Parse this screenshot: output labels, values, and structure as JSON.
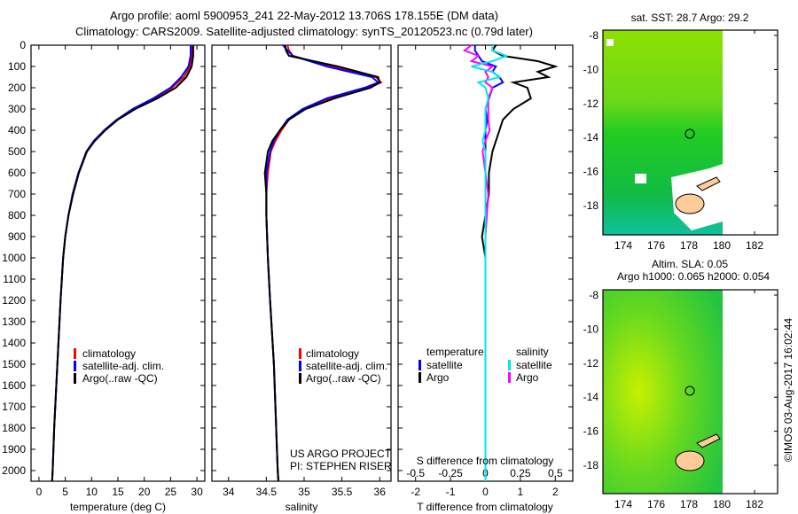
{
  "title_line1": "Argo profile: aoml 5900953_241 22-May-2012 13.706S 178.155E (DM data)",
  "title_line2": "Climatology: CARS2009. Satellite-adjusted climatology: synTS_20120523.nc (0.79d later)",
  "timestamp": "©IMOS 03-Aug-2017 16:02:44",
  "project_line1": "US ARGO PROJECT",
  "project_line2": "PI: STEPHEN RISER",
  "colors": {
    "climatology": "#ff0000",
    "satellite": "#0000ff",
    "argo": "#000000",
    "sal_satellite": "#00e5ee",
    "sal_argo": "#ff00ff",
    "land": "#ffcc99"
  },
  "chart_data": [
    {
      "type": "line",
      "name": "temperature",
      "xlabel": "temperature (deg C)",
      "ylabel": "depth",
      "xlim": [
        -1.5,
        31.5
      ],
      "ylim": [
        2050,
        0
      ],
      "xticks": [
        0,
        5,
        10,
        15,
        20,
        25,
        30
      ],
      "yticks": [
        0,
        100,
        200,
        300,
        400,
        500,
        600,
        700,
        800,
        900,
        1000,
        1100,
        1200,
        1300,
        1400,
        1500,
        1600,
        1700,
        1800,
        1900,
        2000
      ],
      "legend": [
        "climatology",
        "satellite-adj. clim.",
        "Argo(..raw -QC)"
      ],
      "depth": [
        0,
        50,
        100,
        150,
        200,
        250,
        300,
        350,
        400,
        450,
        500,
        600,
        700,
        800,
        900,
        1000,
        1200,
        1400,
        1600,
        1800,
        2000,
        2050
      ],
      "series": [
        {
          "name": "climatology",
          "values": [
            29.1,
            29.1,
            28.7,
            27.5,
            25.3,
            22.0,
            18.0,
            14.8,
            12.4,
            10.5,
            9.1,
            7.5,
            6.4,
            5.6,
            5.0,
            4.6,
            4.1,
            3.7,
            3.3,
            2.9,
            2.6,
            2.5
          ]
        },
        {
          "name": "satellite-adj. clim.",
          "values": [
            28.8,
            28.8,
            28.4,
            27.0,
            25.0,
            21.7,
            17.8,
            14.8,
            12.4,
            10.4,
            9.0,
            7.5,
            6.4,
            5.6,
            5.0,
            4.6,
            4.1,
            3.7,
            3.3,
            2.9,
            2.6,
            2.5
          ]
        },
        {
          "name": "Argo(..raw -QC)",
          "values": [
            29.3,
            29.3,
            29.0,
            28.0,
            26.0,
            22.5,
            18.3,
            15.0,
            12.6,
            10.6,
            9.1,
            7.6,
            6.5,
            5.6,
            5.0,
            4.6,
            4.1,
            3.7,
            3.3,
            2.9,
            2.6,
            2.5
          ]
        }
      ]
    },
    {
      "type": "line",
      "name": "salinity",
      "xlabel": "salinity",
      "ylabel": "depth",
      "xlim": [
        33.78,
        36.15
      ],
      "ylim": [
        2050,
        0
      ],
      "xticks": [
        "34",
        "34.5",
        "35",
        "35.5",
        "36"
      ],
      "legend": [
        "climatology",
        "satellite-adj. clim.",
        "Argo(..raw -QC)"
      ],
      "depth": [
        0,
        25,
        50,
        100,
        150,
        175,
        200,
        250,
        300,
        350,
        400,
        450,
        500,
        600,
        700,
        800,
        1000,
        1200,
        1500,
        2000,
        2050
      ],
      "series": [
        {
          "name": "climatology",
          "values": [
            34.78,
            34.8,
            34.85,
            35.35,
            35.95,
            36.02,
            35.85,
            35.35,
            35.0,
            34.8,
            34.7,
            34.62,
            34.56,
            34.52,
            34.5,
            34.5,
            34.52,
            34.55,
            34.6,
            34.65,
            34.66
          ]
        },
        {
          "name": "satellite-adj. clim.",
          "values": [
            34.72,
            34.78,
            34.85,
            35.3,
            35.9,
            35.98,
            35.8,
            35.3,
            34.98,
            34.78,
            34.68,
            34.6,
            34.55,
            34.5,
            34.5,
            34.5,
            34.52,
            34.55,
            34.6,
            34.65,
            34.66
          ]
        },
        {
          "name": "Argo(..raw -QC)",
          "values": [
            34.75,
            34.76,
            34.8,
            35.45,
            35.98,
            36.0,
            35.88,
            35.4,
            35.02,
            34.8,
            34.68,
            34.58,
            34.52,
            34.48,
            34.5,
            34.5,
            34.52,
            34.55,
            34.6,
            34.65,
            34.66
          ]
        }
      ]
    },
    {
      "type": "line",
      "name": "differences",
      "xlabel": "T difference from climatology",
      "x2label": "S difference from climatology",
      "xlim": [
        -2.5,
        2.5
      ],
      "x2lim": [
        -0.625,
        0.625
      ],
      "ylim": [
        2050,
        0
      ],
      "xticks": [
        "-2",
        "-1",
        "0",
        "1",
        "2"
      ],
      "x2ticks": [
        "-0.5",
        "-0.25",
        "0",
        "0.25",
        "0.5"
      ],
      "legend_titles": [
        "temperature",
        "salinity"
      ],
      "legend": [
        "satellite",
        "Argo",
        "satellite",
        "Argo"
      ],
      "depth": [
        0,
        25,
        50,
        75,
        100,
        125,
        150,
        175,
        200,
        250,
        300,
        350,
        400,
        450,
        500,
        600,
        700,
        800,
        900,
        1000,
        1500,
        2000,
        2050
      ],
      "series": [
        {
          "name": "T satellite",
          "values": [
            -0.3,
            -0.3,
            -0.2,
            -0.1,
            0.3,
            0.2,
            0.4,
            0.5,
            0.2,
            0.1,
            0.0,
            0.05,
            0.0,
            0.0,
            0.0,
            0.0,
            0.0,
            0.0,
            0.0,
            0.0,
            0.0,
            0.0,
            0.0
          ]
        },
        {
          "name": "T Argo",
          "values": [
            0.3,
            0.2,
            0.5,
            1.5,
            2.0,
            1.5,
            1.8,
            0.8,
            1.2,
            1.3,
            0.8,
            0.5,
            0.4,
            0.3,
            0.2,
            0.1,
            0.1,
            0.0,
            -0.1,
            0.0,
            0.0,
            0.0,
            0.0
          ]
        },
        {
          "name": "S satellite",
          "values": [
            0.05,
            0.05,
            0.15,
            0.05,
            -0.1,
            0.05,
            0.1,
            -0.05,
            0.0,
            0.02,
            0.0,
            0.0,
            0.0,
            -0.02,
            0.0,
            0.0,
            0.0,
            0.0,
            0.0,
            0.0,
            0.0,
            0.0,
            0.0
          ]
        },
        {
          "name": "S Argo",
          "values": [
            -0.1,
            -0.15,
            -0.05,
            -0.1,
            0.05,
            0.0,
            0.02,
            0.0,
            0.05,
            0.02,
            0.02,
            0.02,
            0.03,
            0.0,
            -0.02,
            0.0,
            0.02,
            0.01,
            0.0,
            0.0,
            0.0,
            0.0,
            0.0
          ]
        }
      ]
    },
    {
      "type": "heatmap",
      "name": "sst-map",
      "title": "sat. SST: 28.7 Argo: 29.2",
      "xticks": [
        "174",
        "176",
        "178",
        "180",
        "182"
      ],
      "yticks": [
        "-8",
        "-10",
        "-12",
        "-14",
        "-16",
        "-18"
      ],
      "float_position": [
        178.155,
        -13.706
      ]
    },
    {
      "type": "heatmap",
      "name": "sla-map",
      "title_line1": "Altim. SLA: 0.05",
      "title_line2": "Argo h1000: 0.065 h2000: 0.054",
      "xticks": [
        "174",
        "176",
        "178",
        "180",
        "182"
      ],
      "yticks": [
        "-8",
        "-10",
        "-12",
        "-14",
        "-16",
        "-18"
      ],
      "float_position": [
        178.155,
        -13.706
      ]
    }
  ]
}
